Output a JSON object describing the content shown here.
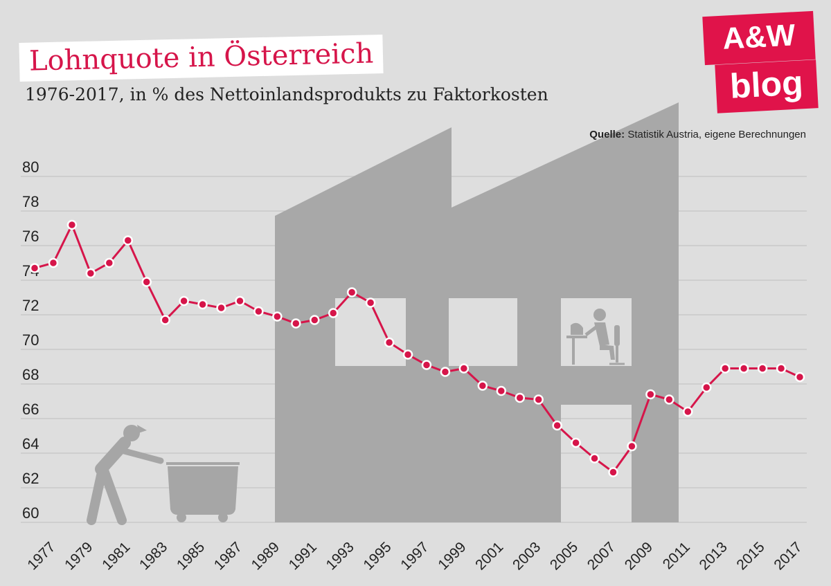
{
  "title": "Lohnquote in Österreich",
  "subtitle": "1976-2017, in % des Nettoinlandsprodukts zu Faktorkosten",
  "source": {
    "label": "Quelle:",
    "text": " Statistik Austria, eigene Berechnungen"
  },
  "logo": {
    "line1": "A&W",
    "line2": "blog"
  },
  "colors": {
    "line": "#d6154a",
    "background": "#dedede",
    "grid": "#c9c9c9",
    "building": "#a8a8a8",
    "figure": "#a6a6a6"
  },
  "chart_data": {
    "type": "line",
    "title": "Lohnquote in Österreich",
    "subtitle": "1976-2017, in % des Nettoinlandsprodukts zu Faktorkosten",
    "xlabel": "",
    "ylabel": "",
    "ylim": [
      60,
      80
    ],
    "yticks": [
      60,
      62,
      64,
      66,
      68,
      70,
      72,
      74,
      76,
      78,
      80
    ],
    "xlim": [
      1976,
      2017
    ],
    "xticks": [
      1977,
      1979,
      1981,
      1983,
      1985,
      1987,
      1989,
      1991,
      1993,
      1995,
      1997,
      1999,
      2001,
      2003,
      2005,
      2007,
      2009,
      2011,
      2013,
      2015,
      2017
    ],
    "grid": true,
    "x": [
      1976,
      1977,
      1978,
      1979,
      1980,
      1981,
      1982,
      1983,
      1984,
      1985,
      1986,
      1987,
      1988,
      1989,
      1990,
      1991,
      1992,
      1993,
      1994,
      1995,
      1996,
      1997,
      1998,
      1999,
      2000,
      2001,
      2002,
      2003,
      2004,
      2005,
      2006,
      2007,
      2008,
      2009,
      2010,
      2011,
      2012,
      2013,
      2014,
      2015,
      2016,
      2017
    ],
    "values": [
      74.7,
      75.0,
      77.2,
      74.4,
      75.0,
      76.3,
      73.9,
      71.7,
      72.8,
      72.6,
      72.4,
      72.8,
      72.2,
      71.9,
      71.5,
      71.7,
      72.1,
      73.3,
      72.7,
      70.4,
      69.7,
      69.1,
      68.7,
      68.9,
      67.9,
      67.6,
      67.2,
      67.1,
      65.6,
      64.6,
      63.7,
      62.9,
      64.4,
      67.4,
      67.1,
      66.4,
      67.8,
      68.9,
      68.9,
      68.9,
      68.9,
      68.4
    ]
  }
}
